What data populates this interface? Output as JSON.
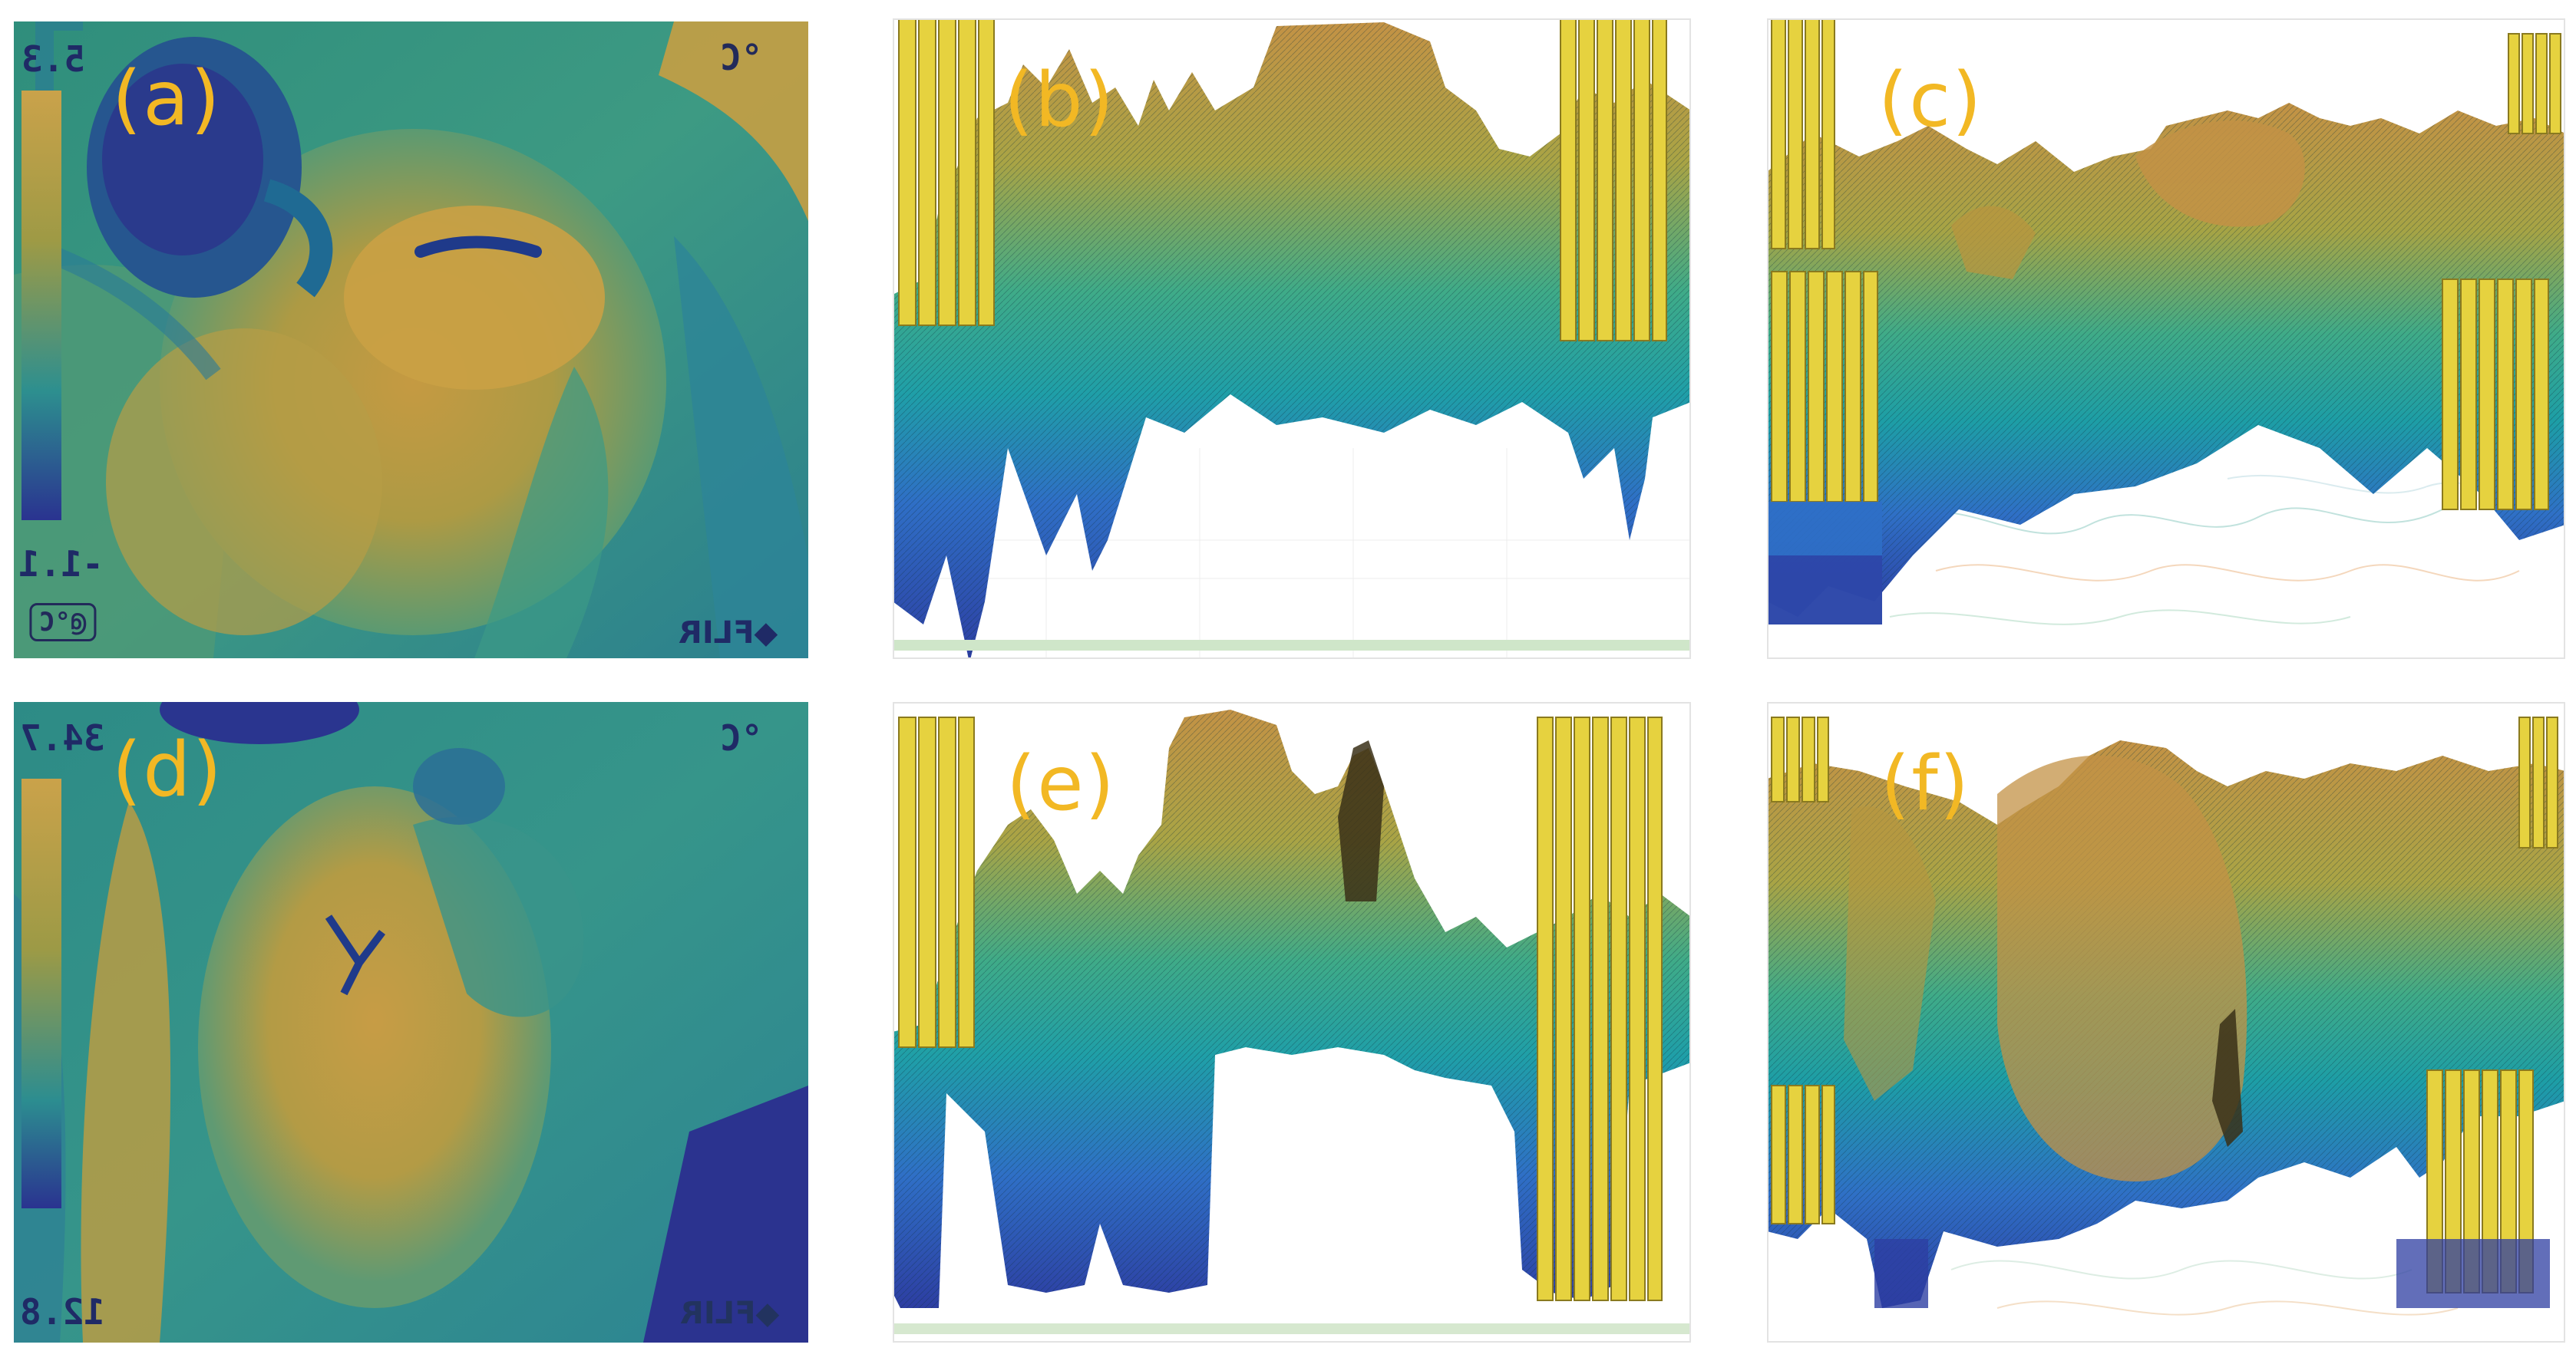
{
  "panels": [
    {
      "id": "a",
      "label": "(a)",
      "scale_max": "5.3",
      "scale_min": "-1.1",
      "unit": "°C",
      "box_text": "@°C",
      "brand": "FLIR"
    },
    {
      "id": "b",
      "label": "(b)"
    },
    {
      "id": "c",
      "label": "(c)"
    },
    {
      "id": "d",
      "label": "(d)",
      "scale_max": "34.7",
      "scale_min": "12.8",
      "unit": "°C",
      "brand": "FLIR"
    },
    {
      "id": "e",
      "label": "(e)"
    },
    {
      "id": "f",
      "label": "(f)"
    }
  ],
  "colors": {
    "label": "#f2b824",
    "thermal_dark": "#2b3a8f",
    "thermal_teal": "#1d8f93",
    "thermal_warm": "#b59a3d",
    "surface_yellow": "#e8d44a",
    "surface_orange": "#c9923e",
    "surface_teal": "#23a3a0",
    "surface_blue": "#2a5fc2"
  }
}
